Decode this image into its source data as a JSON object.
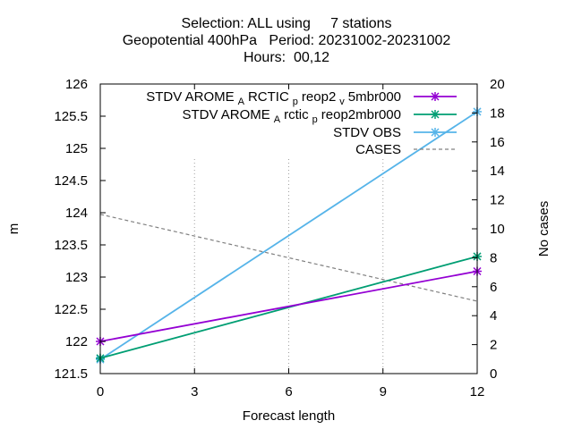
{
  "title_lines": [
    "Selection: ALL using     7 stations",
    "Geopotential 400hPa   Period: 20231002-20231002",
    "Hours:  00,12"
  ],
  "chart_data": {
    "type": "line",
    "xlabel": "Forecast length",
    "ylabel": "m",
    "y2label": "No cases",
    "x_ticks": [
      0,
      3,
      6,
      9,
      12
    ],
    "xlim": [
      0,
      12
    ],
    "ylim": [
      121.5,
      126
    ],
    "y_ticks": [
      "121.5",
      "122",
      "122.5",
      "123",
      "123.5",
      "124",
      "124.5",
      "125",
      "125.5",
      "126"
    ],
    "y2lim": [
      0,
      20
    ],
    "y2_ticks": [
      "0",
      "2",
      "4",
      "6",
      "8",
      "10",
      "12",
      "14",
      "16",
      "18",
      "20"
    ],
    "grid": true,
    "legend_position": "top-right",
    "series": [
      {
        "name_main": "STDV AROME",
        "name_sub1": "A",
        "name_mid": "RCTIC",
        "name_sub2": "p",
        "name_mid2": "reop2",
        "name_sub3": "v",
        "name_end": "5mbr000",
        "axis": "y1",
        "color": "#9400d3",
        "marker": "x",
        "dash": false,
        "x": [
          0,
          12
        ],
        "values": [
          122.0,
          123.09
        ]
      },
      {
        "name_main": "STDV AROME",
        "name_sub1": "A",
        "name_mid": "rctic",
        "name_sub2": "p",
        "name_end": "reop2mbr000",
        "axis": "y1",
        "color": "#009e73",
        "marker": "x",
        "dash": false,
        "x": [
          0,
          12
        ],
        "values": [
          121.74,
          123.32
        ]
      },
      {
        "name_main": "STDV OBS",
        "axis": "y1",
        "color": "#56b4e9",
        "marker": "x",
        "dash": false,
        "x": [
          0,
          12
        ],
        "values": [
          121.72,
          125.57
        ]
      },
      {
        "name_main": "CASES",
        "axis": "y2",
        "color": "#808080",
        "marker": "none",
        "dash": true,
        "x": [
          0,
          12
        ],
        "values": [
          11,
          5
        ]
      }
    ]
  }
}
